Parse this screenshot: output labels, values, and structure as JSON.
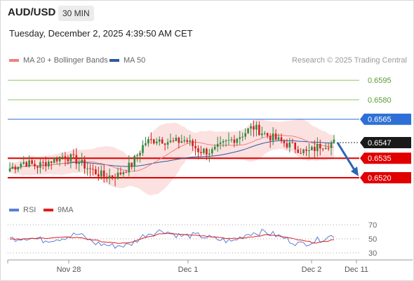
{
  "header": {
    "symbol": "AUD/USD",
    "timeframe": "30 MIN",
    "datetime": "Tuesday, December 2, 2025 4:39:50 AM CET"
  },
  "legend": {
    "ma20": "MA 20 + Bollinger Bands",
    "ma50": "MA 50",
    "credit": "Research © 2025 Trading Central",
    "rsi": "RSI",
    "rsi_ma": "9MA"
  },
  "colors": {
    "ma20": "#f08080",
    "ma50": "#2c5aa0",
    "candle_up": "#2e8b3e",
    "candle_down": "#d42020",
    "resistance_green": "#8cc860",
    "pivot_blue": "#2d6fd6",
    "support_red": "#e00000",
    "rsi": "#5a7fd8",
    "rsi_ma": "#e02020",
    "band_fill": "#fcdcdc"
  },
  "chart_data": {
    "type": "candlestick",
    "y_range": [
      0.6507,
      0.6607
    ],
    "x_ticks": [
      "Nov 28",
      "Dec 1",
      "Dec 2",
      "Dec 11"
    ],
    "price_levels": [
      {
        "label": "0.6595",
        "value": 0.6595,
        "kind": "resistance"
      },
      {
        "label": "0.6580",
        "value": 0.658,
        "kind": "resistance"
      },
      {
        "label": "0.6565",
        "value": 0.6565,
        "kind": "pivot"
      },
      {
        "label": "0.6547",
        "value": 0.6547,
        "kind": "last"
      },
      {
        "label": "0.6535",
        "value": 0.6535,
        "kind": "support"
      },
      {
        "label": "0.6520",
        "value": 0.652,
        "kind": "support"
      }
    ],
    "forecast": {
      "from": 0.6547,
      "to": 0.652,
      "direction": "down"
    },
    "close_anchors": [
      0.6527,
      0.6532,
      0.6529,
      0.6533,
      0.6537,
      0.6533,
      0.6526,
      0.6521,
      0.6522,
      0.653,
      0.6547,
      0.655,
      0.6547,
      0.6549,
      0.6541,
      0.654,
      0.6547,
      0.6552,
      0.6559,
      0.6553,
      0.6548,
      0.6544,
      0.6539,
      0.6545,
      0.6547
    ],
    "rsi": {
      "levels": [
        70,
        50,
        30
      ],
      "y_range": [
        22,
        78
      ],
      "anchors": [
        50,
        52,
        48,
        51,
        57,
        44,
        40,
        41,
        57,
        62,
        54,
        55,
        50,
        46,
        58,
        60,
        52,
        42,
        48,
        55
      ],
      "ma_anchors": [
        50,
        50,
        51,
        52,
        52,
        48,
        44,
        44,
        52,
        58,
        57,
        55,
        53,
        50,
        52,
        56,
        53,
        48,
        44,
        49
      ]
    }
  }
}
